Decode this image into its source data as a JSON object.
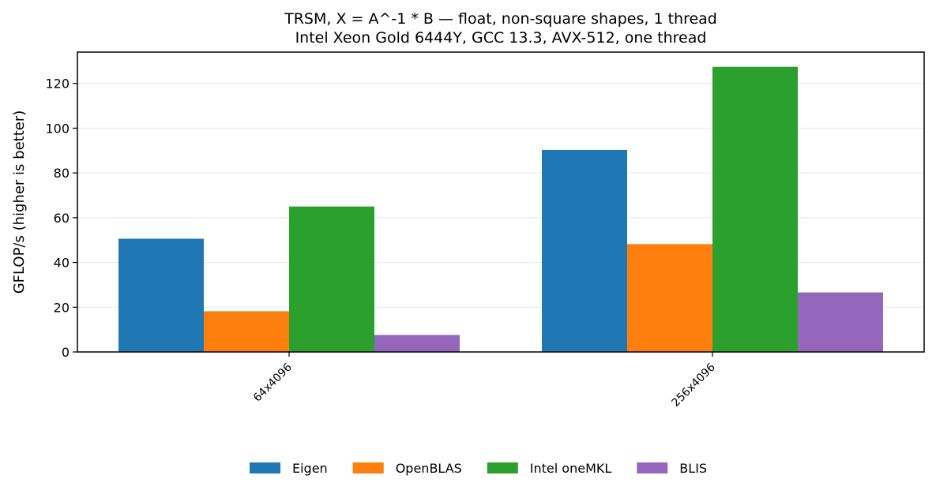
{
  "chart_data": {
    "type": "bar",
    "title": "TRSM, X = A^-1 * B — float, non-square shapes, 1 thread",
    "subtitle": "Intel Xeon Gold 6444Y, GCC 13.3, AVX-512, one thread",
    "xlabel": "",
    "ylabel": "GFLOP/s (higher is better)",
    "categories": [
      "64x4096",
      "256x4096"
    ],
    "ylim": [
      0,
      134
    ],
    "yticks": [
      0,
      20,
      40,
      60,
      80,
      100,
      120
    ],
    "grid": "horizontal",
    "legend_position": "bottom",
    "series": [
      {
        "name": "Eigen",
        "color": "#1f77b4",
        "values": [
          50.6,
          90.3
        ]
      },
      {
        "name": "OpenBLAS",
        "color": "#ff7f0e",
        "values": [
          18.2,
          48.2
        ]
      },
      {
        "name": "Intel oneMKL",
        "color": "#2ca02c",
        "values": [
          65.0,
          127.4
        ]
      },
      {
        "name": "BLIS",
        "color": "#9467bd",
        "values": [
          7.6,
          26.6
        ]
      }
    ]
  }
}
